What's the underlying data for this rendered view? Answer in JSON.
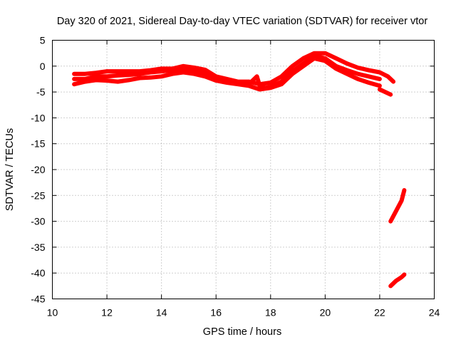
{
  "chart_data": {
    "type": "line",
    "title": "Day 320 of 2021, Sidereal Day-to-day VTEC variation (SDTVAR) for receiver vtor",
    "xlabel": "GPS time / hours",
    "ylabel": "SDTVAR / TECUs",
    "xlim": [
      10,
      24
    ],
    "ylim": [
      -45,
      5
    ],
    "xticks": [
      10,
      12,
      14,
      16,
      18,
      20,
      22,
      24
    ],
    "yticks": [
      5,
      0,
      -5,
      -10,
      -15,
      -20,
      -25,
      -30,
      -35,
      -40,
      -45
    ],
    "grid": true,
    "color": "#ff0000",
    "series": [
      {
        "name": "band-upper",
        "x": [
          10.8,
          11.2,
          11.6,
          12.0,
          12.4,
          12.8,
          13.2,
          13.6,
          14.0,
          14.4,
          14.8,
          15.2,
          15.6,
          16.0,
          16.4,
          16.8,
          17.2,
          17.6,
          18.0,
          18.4,
          18.8,
          19.2,
          19.6,
          20.0,
          20.4,
          20.8,
          21.2,
          21.6,
          22.0,
          22.3,
          22.5
        ],
        "y": [
          -1.5,
          -1.5,
          -1.3,
          -1.0,
          -1.0,
          -1.0,
          -1.0,
          -0.8,
          -0.5,
          -0.5,
          0.0,
          -0.3,
          -0.7,
          -2.0,
          -2.5,
          -3.0,
          -3.0,
          -3.5,
          -3.2,
          -2.0,
          0.0,
          1.5,
          2.5,
          2.5,
          1.5,
          0.5,
          -0.3,
          -0.8,
          -1.2,
          -2.0,
          -3.0
        ]
      },
      {
        "name": "band-middle",
        "x": [
          10.8,
          11.2,
          11.6,
          12.0,
          12.4,
          12.8,
          13.2,
          13.6,
          14.0,
          14.4,
          14.8,
          15.2,
          15.6,
          16.0,
          16.4,
          16.8,
          17.2,
          17.5,
          17.6,
          17.8,
          18.0,
          18.4,
          18.8,
          19.2,
          19.6,
          20.0,
          20.4,
          20.8,
          21.2,
          21.6,
          22.0
        ],
        "y": [
          -2.5,
          -2.5,
          -2.0,
          -2.0,
          -1.8,
          -1.7,
          -1.5,
          -1.2,
          -1.0,
          -0.8,
          -0.8,
          -1.0,
          -1.5,
          -2.5,
          -3.0,
          -3.2,
          -3.5,
          -2.0,
          -3.8,
          -4.2,
          -4.0,
          -3.0,
          -1.0,
          0.5,
          2.0,
          1.5,
          0.0,
          -0.8,
          -1.5,
          -2.0,
          -2.5
        ]
      },
      {
        "name": "band-lower",
        "x": [
          10.8,
          11.2,
          11.6,
          12.0,
          12.4,
          12.8,
          13.2,
          13.6,
          14.0,
          14.4,
          14.8,
          15.2,
          15.6,
          16.0,
          16.4,
          16.8,
          17.2,
          17.6,
          18.0,
          18.4,
          18.8,
          19.2,
          19.6,
          20.0,
          20.4,
          20.8,
          21.2,
          21.6,
          22.0
        ],
        "y": [
          -3.5,
          -3.0,
          -2.7,
          -2.8,
          -3.0,
          -2.7,
          -2.3,
          -2.2,
          -2.0,
          -1.5,
          -1.2,
          -1.5,
          -2.0,
          -2.8,
          -3.2,
          -3.5,
          -3.8,
          -4.5,
          -4.2,
          -3.5,
          -1.5,
          0.0,
          1.5,
          1.0,
          -0.5,
          -1.5,
          -2.5,
          -3.2,
          -3.8
        ]
      },
      {
        "name": "segment-a",
        "x": [
          22.0,
          22.4
        ],
        "y": [
          -4.5,
          -5.5
        ]
      },
      {
        "name": "segment-b",
        "x": [
          22.4,
          22.6,
          22.8,
          22.9
        ],
        "y": [
          -30,
          -28,
          -26,
          -24
        ]
      },
      {
        "name": "segment-c",
        "x": [
          22.4,
          22.6,
          22.8,
          22.9
        ],
        "y": [
          -42.5,
          -41.5,
          -40.8,
          -40.3
        ]
      }
    ]
  }
}
